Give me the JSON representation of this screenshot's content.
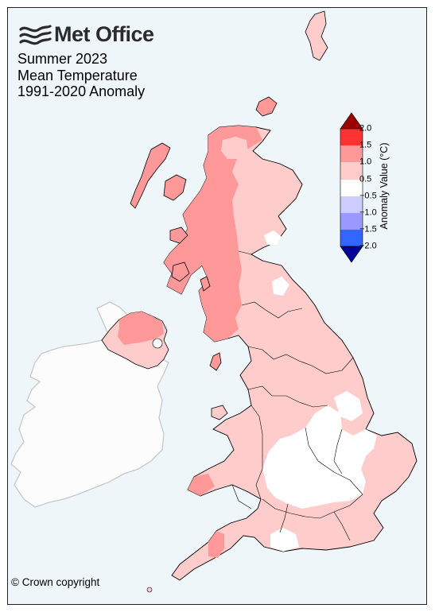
{
  "logo": {
    "text": "Met Office"
  },
  "title": {
    "line1": "Summer 2023",
    "line2": "Mean Temperature",
    "line3": "1991-2020 Anomaly"
  },
  "copyright": "© Crown copyright",
  "legend": {
    "label": "Anomaly Value (°C)",
    "ticks": [
      "2.0",
      "1.5",
      "1.0",
      "0.5",
      "−0.5",
      "−1.0",
      "−1.5",
      "−2.0"
    ],
    "bins": [
      {
        "range": ">2.0",
        "color": "#990000"
      },
      {
        "range": "1.5 to 2.0",
        "color": "#ff3333"
      },
      {
        "range": "1.0 to 1.5",
        "color": "#ff9999"
      },
      {
        "range": "0.5 to 1.0",
        "color": "#ffcccc"
      },
      {
        "range": "-0.5 to 0.5",
        "color": "#ffffff"
      },
      {
        "range": "-1.0 to -0.5",
        "color": "#ccccff"
      },
      {
        "range": "-1.5 to -1.0",
        "color": "#9999ff"
      },
      {
        "range": "-2.0 to -1.5",
        "color": "#3366ff"
      },
      {
        "range": "<-2.0",
        "color": "#000099"
      }
    ]
  },
  "colors": {
    "sea": "#eef6fa",
    "ireland_land": "#fcfcfc",
    "ireland_border": "#c8c8c8",
    "anomaly_0_5_to_1_0": "#ffcccc",
    "anomaly_1_0_to_1_5": "#ff9999",
    "anomaly_1_5_to_2_0": "#ff3333",
    "neutral": "#ffffff"
  }
}
